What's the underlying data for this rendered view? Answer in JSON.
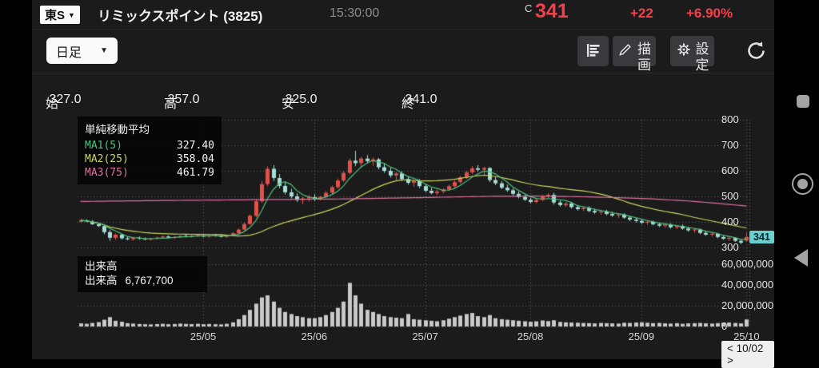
{
  "header": {
    "market_badge": "東S",
    "title": "リミックスポイント (3825)",
    "time": "15:30:00",
    "price_prefix": "C",
    "price": "341",
    "change": "+22",
    "change_pct": "+6.90%",
    "accent_color": "#f4404b"
  },
  "toolbar": {
    "timeframe": "日足",
    "draw_label": "描画",
    "settings_label": "設定"
  },
  "ohlc": {
    "open_label": "始",
    "open": "327.0",
    "high_label": "高",
    "high": "357.0",
    "low_label": "安",
    "low": "325.0",
    "close_label": "終",
    "close": "341.0"
  },
  "ma_legend": {
    "title": "単純移動平均",
    "items": [
      {
        "label": "MA1(5)",
        "value": "327.40",
        "color": "#4cc27e"
      },
      {
        "label": "MA2(25)",
        "value": "358.04",
        "color": "#ccd65f"
      },
      {
        "label": "MA3(75)",
        "value": "461.79",
        "color": "#e06fa4"
      }
    ]
  },
  "volume_legend": {
    "title": "出来高",
    "label": "出来高",
    "value": "6,767,700"
  },
  "pager": {
    "label": "< 10/02 >"
  },
  "chart_data": {
    "type": "candlestick+volume",
    "title": "リミックスポイント (3825) 日足",
    "price_axis": {
      "ticks": [
        {
          "label": "800",
          "value": 800
        },
        {
          "label": "700",
          "value": 700
        },
        {
          "label": "600",
          "value": 600
        },
        {
          "label": "500",
          "value": 500
        },
        {
          "label": "400",
          "value": 400
        },
        {
          "label": "300",
          "value": 300
        }
      ]
    },
    "volume_axis": {
      "ticks": [
        {
          "label": "60,000,000",
          "value": 60
        },
        {
          "label": "40,000,000",
          "value": 40
        },
        {
          "label": "20,000,000",
          "value": 20
        },
        {
          "label": "0",
          "value": 0
        }
      ],
      "unit": "millions"
    },
    "month_ticks": [
      {
        "label": "25/05",
        "index": 21
      },
      {
        "label": "25/06",
        "index": 40
      },
      {
        "label": "25/07",
        "index": 59
      },
      {
        "label": "25/08",
        "index": 77
      },
      {
        "label": "25/09",
        "index": 96
      },
      {
        "label": "25/10",
        "index": 114
      }
    ],
    "current_price_label": "341",
    "ma_periods": {
      "ma1": 5,
      "ma2": 25,
      "ma3": 75
    },
    "ma3_points": [
      [
        0,
        480
      ],
      [
        15,
        484
      ],
      [
        30,
        487
      ],
      [
        45,
        490
      ],
      [
        60,
        496
      ],
      [
        70,
        500
      ],
      [
        78,
        501
      ],
      [
        85,
        499
      ],
      [
        92,
        495
      ],
      [
        98,
        490
      ],
      [
        104,
        482
      ],
      [
        109,
        473
      ],
      [
        114,
        462
      ]
    ],
    "colors": {
      "up": "#e0514b",
      "down": "#a7ddd6",
      "ma1": "#4cc27e",
      "ma2": "#ccd65f",
      "ma3": "#e06fa4",
      "volume": "#c9c9c9",
      "grid": "rgba(255,255,255,0.30)",
      "price_tag_bg": "#68d0ce"
    },
    "candles": [
      [
        400,
        412,
        396,
        406,
        3.0
      ],
      [
        406,
        410,
        399,
        402,
        2.6
      ],
      [
        402,
        406,
        388,
        391,
        3.4
      ],
      [
        391,
        397,
        380,
        384,
        4.2
      ],
      [
        384,
        390,
        352,
        360,
        6.5
      ],
      [
        360,
        368,
        326,
        338,
        9.0
      ],
      [
        338,
        354,
        330,
        350,
        5.5
      ],
      [
        350,
        352,
        331,
        336,
        4.6
      ],
      [
        336,
        344,
        328,
        332,
        3.2
      ],
      [
        332,
        340,
        327,
        337,
        2.8
      ],
      [
        337,
        343,
        331,
        334,
        2.4
      ],
      [
        334,
        339,
        328,
        331,
        2.2
      ],
      [
        331,
        338,
        327,
        335,
        2.0
      ],
      [
        335,
        342,
        331,
        339,
        2.3
      ],
      [
        339,
        346,
        334,
        343,
        2.6
      ],
      [
        343,
        347,
        336,
        338,
        2.2
      ],
      [
        338,
        344,
        333,
        341,
        2.4
      ],
      [
        341,
        348,
        337,
        345,
        2.8
      ],
      [
        345,
        351,
        340,
        343,
        2.5
      ],
      [
        343,
        349,
        338,
        346,
        2.3
      ],
      [
        346,
        352,
        341,
        348,
        2.6
      ],
      [
        346,
        352,
        340,
        343,
        2.2
      ],
      [
        343,
        349,
        338,
        347,
        2.4
      ],
      [
        347,
        353,
        342,
        345,
        2.2
      ],
      [
        345,
        351,
        339,
        342,
        2.0
      ],
      [
        342,
        350,
        338,
        347,
        2.6
      ],
      [
        347,
        360,
        344,
        356,
        4.0
      ],
      [
        356,
        374,
        352,
        370,
        7.0
      ],
      [
        370,
        398,
        366,
        392,
        11.0
      ],
      [
        392,
        430,
        388,
        424,
        16.0
      ],
      [
        424,
        490,
        418,
        481,
        22.0
      ],
      [
        481,
        560,
        474,
        548,
        28.0
      ],
      [
        548,
        618,
        540,
        608,
        30.0
      ],
      [
        608,
        622,
        560,
        572,
        24.0
      ],
      [
        572,
        588,
        532,
        541,
        18.0
      ],
      [
        541,
        556,
        508,
        516,
        14.0
      ],
      [
        516,
        530,
        492,
        500,
        12.0
      ],
      [
        500,
        512,
        478,
        486,
        10.0
      ],
      [
        486,
        498,
        470,
        492,
        9.0
      ],
      [
        492,
        505,
        480,
        497,
        8.0
      ],
      [
        497,
        508,
        482,
        488,
        8.0
      ],
      [
        488,
        502,
        484,
        498,
        9.0
      ],
      [
        498,
        520,
        494,
        514,
        11.0
      ],
      [
        514,
        542,
        508,
        536,
        14.0
      ],
      [
        536,
        570,
        530,
        562,
        18.0
      ],
      [
        562,
        600,
        556,
        592,
        24.0
      ],
      [
        592,
        648,
        586,
        640,
        42.0
      ],
      [
        640,
        678,
        618,
        630,
        30.0
      ],
      [
        630,
        655,
        612,
        648,
        22.0
      ],
      [
        648,
        662,
        630,
        638,
        16.0
      ],
      [
        638,
        652,
        620,
        645,
        14.0
      ],
      [
        645,
        650,
        606,
        614,
        12.0
      ],
      [
        614,
        630,
        592,
        600,
        10.0
      ],
      [
        600,
        612,
        574,
        582,
        9.0
      ],
      [
        582,
        596,
        564,
        590,
        8.5
      ],
      [
        590,
        598,
        560,
        568,
        8.0
      ],
      [
        568,
        578,
        546,
        553,
        12.0
      ],
      [
        553,
        566,
        538,
        560,
        7.0
      ],
      [
        560,
        568,
        532,
        540,
        6.5
      ],
      [
        540,
        548,
        516,
        522,
        6.0
      ],
      [
        522,
        534,
        508,
        513,
        5.5
      ],
      [
        513,
        525,
        505,
        519,
        5.0
      ],
      [
        519,
        532,
        512,
        527,
        6.0
      ],
      [
        527,
        546,
        522,
        540,
        7.5
      ],
      [
        540,
        562,
        534,
        556,
        9.0
      ],
      [
        556,
        580,
        550,
        574,
        10.5
      ],
      [
        574,
        600,
        568,
        594,
        12.0
      ],
      [
        594,
        618,
        588,
        610,
        13.0
      ],
      [
        610,
        622,
        596,
        604,
        10.0
      ],
      [
        604,
        616,
        584,
        611,
        9.0
      ],
      [
        611,
        614,
        556,
        564,
        11.0
      ],
      [
        564,
        576,
        544,
        551,
        8.0
      ],
      [
        551,
        560,
        528,
        534,
        7.0
      ],
      [
        534,
        546,
        518,
        524,
        6.5
      ],
      [
        524,
        532,
        504,
        510,
        6.0
      ],
      [
        510,
        520,
        492,
        498,
        5.5
      ],
      [
        498,
        508,
        482,
        487,
        5.0
      ],
      [
        487,
        495,
        472,
        478,
        4.5
      ],
      [
        478,
        490,
        474,
        486,
        5.0
      ],
      [
        486,
        505,
        482,
        500,
        5.8
      ],
      [
        500,
        512,
        494,
        506,
        5.2
      ],
      [
        506,
        514,
        468,
        476,
        6.0
      ],
      [
        476,
        484,
        460,
        466,
        4.4
      ],
      [
        466,
        478,
        458,
        472,
        4.0
      ],
      [
        472,
        479,
        452,
        458,
        3.8
      ],
      [
        458,
        466,
        444,
        450,
        3.6
      ],
      [
        450,
        460,
        442,
        455,
        3.4
      ],
      [
        455,
        461,
        438,
        443,
        3.2
      ],
      [
        443,
        452,
        432,
        437,
        3.0
      ],
      [
        437,
        446,
        428,
        441,
        3.4
      ],
      [
        441,
        447,
        426,
        431,
        3.2
      ],
      [
        431,
        440,
        420,
        425,
        3.0
      ],
      [
        425,
        434,
        416,
        429,
        2.8
      ],
      [
        429,
        434,
        412,
        417,
        3.6
      ],
      [
        417,
        424,
        404,
        409,
        3.4
      ],
      [
        409,
        416,
        398,
        404,
        3.8
      ],
      [
        404,
        412,
        392,
        397,
        4.0
      ],
      [
        397,
        406,
        388,
        401,
        3.6
      ],
      [
        401,
        405,
        386,
        391,
        3.2
      ],
      [
        391,
        398,
        380,
        385,
        3.4
      ],
      [
        385,
        394,
        378,
        390,
        3.0
      ],
      [
        390,
        395,
        374,
        379,
        2.8
      ],
      [
        379,
        388,
        372,
        384,
        3.2
      ],
      [
        384,
        390,
        369,
        374,
        2.6
      ],
      [
        374,
        380,
        362,
        367,
        3.0
      ],
      [
        367,
        375,
        358,
        371,
        3.2
      ],
      [
        371,
        374,
        352,
        357,
        3.4
      ],
      [
        357,
        364,
        346,
        350,
        3.0
      ],
      [
        350,
        358,
        342,
        354,
        2.8
      ],
      [
        354,
        357,
        336,
        341,
        3.2
      ],
      [
        341,
        348,
        330,
        334,
        3.6
      ],
      [
        334,
        342,
        326,
        338,
        3.8
      ],
      [
        338,
        340,
        322,
        326,
        3.4
      ],
      [
        326,
        330,
        313,
        319,
        3.0
      ],
      [
        327,
        357,
        325,
        341,
        6.8
      ]
    ]
  }
}
